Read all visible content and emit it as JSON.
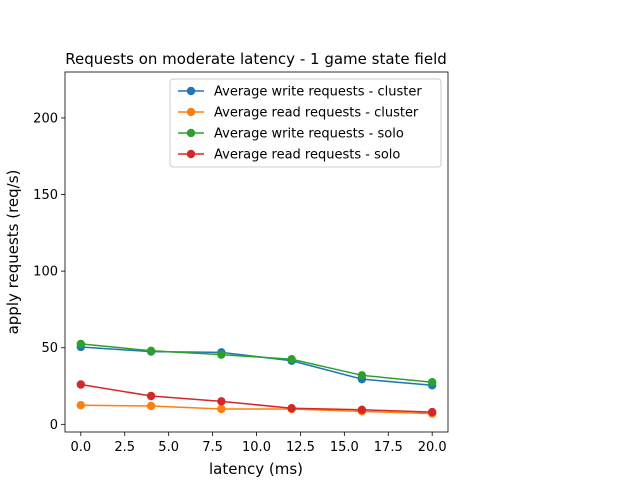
{
  "chart_data": {
    "type": "line",
    "title": "Requests on moderate latency - 1 game state field",
    "xlabel": "latency (ms)",
    "ylabel": "apply requests (req/s)",
    "x": [
      0,
      4,
      8,
      12,
      16,
      20
    ],
    "xlim": [
      -0.9,
      20.9
    ],
    "ylim": [
      -5,
      230
    ],
    "xticks": [
      0.0,
      2.5,
      5.0,
      7.5,
      10.0,
      12.5,
      15.0,
      17.5,
      20.0
    ],
    "xtick_labels": [
      "0.0",
      "2.5",
      "5.0",
      "7.5",
      "10.0",
      "12.5",
      "15.0",
      "17.5",
      "20.0"
    ],
    "yticks": [
      0,
      50,
      100,
      150,
      200
    ],
    "ytick_labels": [
      "0",
      "50",
      "100",
      "150",
      "200"
    ],
    "grid": false,
    "legend_position": "top-right",
    "series": [
      {
        "name": "Average write requests - cluster",
        "color": "#1f77b4",
        "values": [
          50.5,
          47.5,
          47.0,
          41.5,
          29.5,
          25.5
        ]
      },
      {
        "name": "Average read requests - cluster",
        "color": "#ff7f0e",
        "values": [
          12.5,
          12.0,
          10.0,
          10.0,
          8.5,
          7.0
        ]
      },
      {
        "name": "Average write requests - solo",
        "color": "#2ca02c",
        "values": [
          52.5,
          48.0,
          45.5,
          42.5,
          32.0,
          27.5
        ]
      },
      {
        "name": "Average read requests - solo",
        "color": "#d62728",
        "values": [
          26.0,
          18.5,
          15.0,
          10.5,
          9.5,
          8.0
        ]
      }
    ]
  }
}
